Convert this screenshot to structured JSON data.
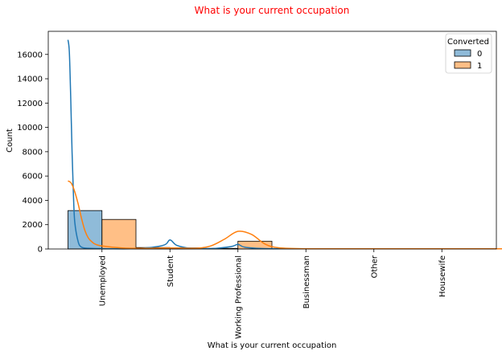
{
  "chart_data": {
    "type": "bar",
    "title": "What is your current occupation",
    "title_color": "#ff0000",
    "xlabel": "What is your current occupation",
    "ylabel": "Count",
    "categories": [
      "Unemployed",
      "Student",
      "Working Professional",
      "Businessman",
      "Other",
      "Housewife"
    ],
    "ylim": [
      0,
      17900
    ],
    "yticks": [
      0,
      2000,
      4000,
      6000,
      8000,
      10000,
      12000,
      14000,
      16000
    ],
    "grid": false,
    "legend": {
      "title": "Converted",
      "position": "top-right"
    },
    "series": [
      {
        "name": "0",
        "color": "#1f77b4",
        "values": [
          3160,
          120,
          50,
          10,
          5,
          0
        ]
      },
      {
        "name": "1",
        "color": "#ff7f0e",
        "values": [
          2430,
          90,
          640,
          10,
          5,
          10
        ]
      }
    ],
    "kde": [
      {
        "series": "0",
        "x": [
          -0.5,
          -0.48,
          -0.46,
          -0.44,
          -0.42,
          -0.4,
          -0.35,
          -0.3,
          -0.2,
          0,
          0.5,
          0.9,
          1.0,
          1.1,
          1.3,
          1.6,
          1.9,
          2.0,
          2.1,
          2.4,
          3.0,
          4.0,
          5.0,
          6.0,
          7.0
        ],
        "y": [
          17200,
          16200,
          12500,
          8000,
          4500,
          2200,
          600,
          150,
          60,
          30,
          30,
          300,
          740,
          300,
          60,
          30,
          200,
          380,
          150,
          30,
          20,
          20,
          20,
          20,
          20
        ]
      },
      {
        "series": "1",
        "x": [
          -0.5,
          -0.45,
          -0.4,
          -0.35,
          -0.3,
          -0.25,
          -0.2,
          -0.15,
          -0.1,
          0,
          0.3,
          0.6,
          0.9,
          1.1,
          1.4,
          1.6,
          1.8,
          2.0,
          2.2,
          2.4,
          2.6,
          3.0,
          4.0,
          5.0,
          6.0,
          7.0
        ],
        "y": [
          5600,
          5400,
          4700,
          3700,
          2500,
          1500,
          900,
          600,
          400,
          250,
          80,
          50,
          80,
          80,
          60,
          250,
          800,
          1450,
          1200,
          400,
          100,
          20,
          20,
          20,
          20,
          20
        ]
      }
    ]
  }
}
